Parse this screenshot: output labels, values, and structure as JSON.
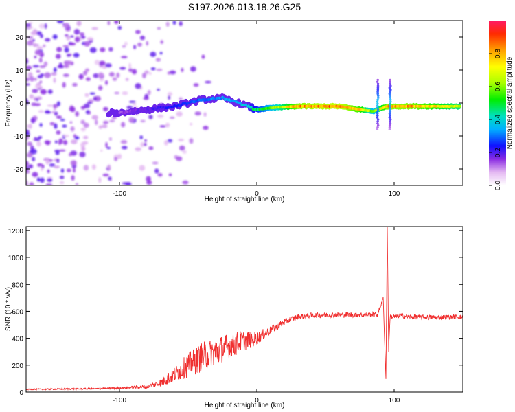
{
  "chart_data": [
    {
      "type": "heatmap",
      "title": "S197.2026.013.18.26.G25",
      "xlabel": "Height of straight line (km)",
      "ylabel": "Frequency (Hz)",
      "xlim": [
        -168,
        150
      ],
      "ylim": [
        -25,
        25
      ],
      "x_ticks": [
        -100,
        0,
        100
      ],
      "x_tick_labels": [
        "-100",
        "0",
        "100"
      ],
      "y_ticks": [
        -20,
        -10,
        0,
        10,
        20
      ],
      "y_tick_labels": [
        "-20",
        "-10",
        "0",
        "10",
        "20"
      ],
      "colorbar": {
        "label": "Normalized spectral amplitude",
        "range": [
          0,
          1
        ],
        "ticks": [
          0.0,
          0.2,
          0.4,
          0.6,
          0.8
        ],
        "tick_labels": [
          "0.0",
          "0.2",
          "0.4",
          "0.6",
          "0.8"
        ]
      },
      "ridge_line": {
        "description_points_x": [
          -100,
          -80,
          -60,
          -40,
          -25,
          -10,
          0,
          10,
          30,
          60,
          75,
          85,
          95,
          110,
          148
        ],
        "description_points_y": [
          -3,
          -2,
          -1,
          1,
          1.5,
          -0.5,
          -2,
          -1.5,
          -1,
          -1,
          -2,
          -2.5,
          -1,
          -1,
          -1
        ],
        "amplitude": [
          0.15,
          0.2,
          0.25,
          0.3,
          0.35,
          0.4,
          0.5,
          0.6,
          0.85,
          0.9,
          0.8,
          0.6,
          0.85,
          0.85,
          0.7
        ]
      }
    },
    {
      "type": "line",
      "xlabel": "Height of straight line (km)",
      "ylabel": "SNR (10 * v/v)",
      "xlim": [
        -168,
        150
      ],
      "ylim": [
        0,
        1230
      ],
      "x_ticks": [
        -100,
        0,
        100
      ],
      "x_tick_labels": [
        "-100",
        "0",
        "100"
      ],
      "y_ticks": [
        0,
        200,
        400,
        600,
        800,
        1000,
        1200
      ],
      "y_tick_labels": [
        "0",
        "200",
        "400",
        "600",
        "800",
        "1000",
        "1200"
      ],
      "series": [
        {
          "name": "SNR",
          "color": "#f03030",
          "envelope_x": [
            -168,
            -120,
            -100,
            -80,
            -70,
            -60,
            -50,
            -40,
            -30,
            -20,
            -10,
            0,
            10,
            20,
            30,
            40,
            60,
            80,
            88,
            92,
            94,
            95,
            96,
            97,
            100,
            105,
            110,
            130,
            150
          ],
          "envelope_y": [
            20,
            25,
            30,
            40,
            70,
            130,
            200,
            260,
            300,
            340,
            380,
            400,
            460,
            520,
            560,
            570,
            575,
            575,
            575,
            700,
            100,
            1230,
            300,
            560,
            560,
            570,
            560,
            555,
            560
          ],
          "noise": [
            5,
            6,
            8,
            15,
            30,
            60,
            90,
            110,
            110,
            100,
            80,
            50,
            30,
            25,
            22,
            20,
            20,
            20,
            20,
            10,
            10,
            10,
            10,
            20,
            20,
            18,
            18,
            18,
            18
          ]
        }
      ]
    }
  ]
}
